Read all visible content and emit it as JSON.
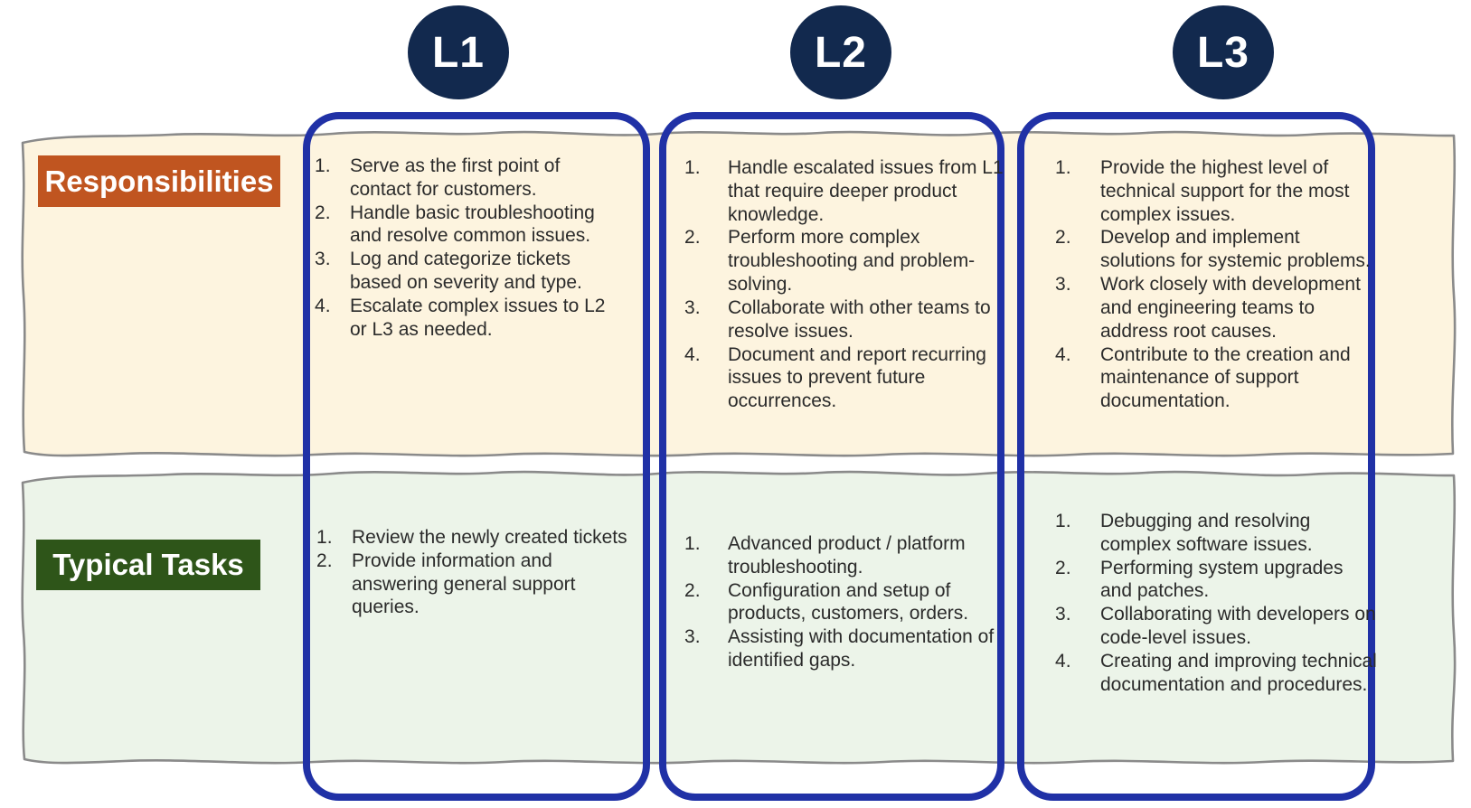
{
  "row_labels": {
    "responsibilities": "Responsibilities",
    "typical_tasks": "Typical Tasks"
  },
  "levels": [
    {
      "badge": "L1",
      "responsibilities": [
        "Serve as the first point of contact for customers.",
        "Handle basic troubleshooting and resolve common issues.",
        "Log and categorize tickets based on severity and type.",
        "Escalate complex issues to L2 or L3 as needed."
      ],
      "typical_tasks": [
        "Review the newly created tickets",
        "Provide information and answering general support queries."
      ]
    },
    {
      "badge": "L2",
      "responsibilities": [
        "Handle escalated issues from L1 that require deeper product knowledge.",
        "Perform more complex troubleshooting and problem-solving.",
        "Collaborate with other teams to resolve issues.",
        "Document and report recurring issues to prevent future occurrences."
      ],
      "typical_tasks": [
        "Advanced product / platform troubleshooting.",
        "Configuration and setup of products, customers, orders.",
        "Assisting with documentation of identified gaps."
      ]
    },
    {
      "badge": "L3",
      "responsibilities": [
        "Provide the highest level of technical support for the most complex issues.",
        "Develop and implement solutions for systemic problems.",
        "Work closely with development and engineering teams to address root causes.",
        "Contribute to the creation and maintenance of support documentation."
      ],
      "typical_tasks": [
        "Debugging and resolving complex software issues.",
        "Performing system upgrades and patches.",
        "Collaborating with developers on code-level issues.",
        "Creating and improving technical documentation and procedures."
      ]
    }
  ],
  "colors": {
    "badge_navy": "#12294e",
    "level_border_blue": "#2031a6",
    "responsibilities_label_bg": "#c05520",
    "tasks_label_bg": "#2e5519",
    "responsibilities_row_bg": "#fdf4df",
    "tasks_row_bg": "#ecf4e9",
    "torn_edge_gray": "#8a8a8a",
    "body_text": "#2b2b2b"
  }
}
